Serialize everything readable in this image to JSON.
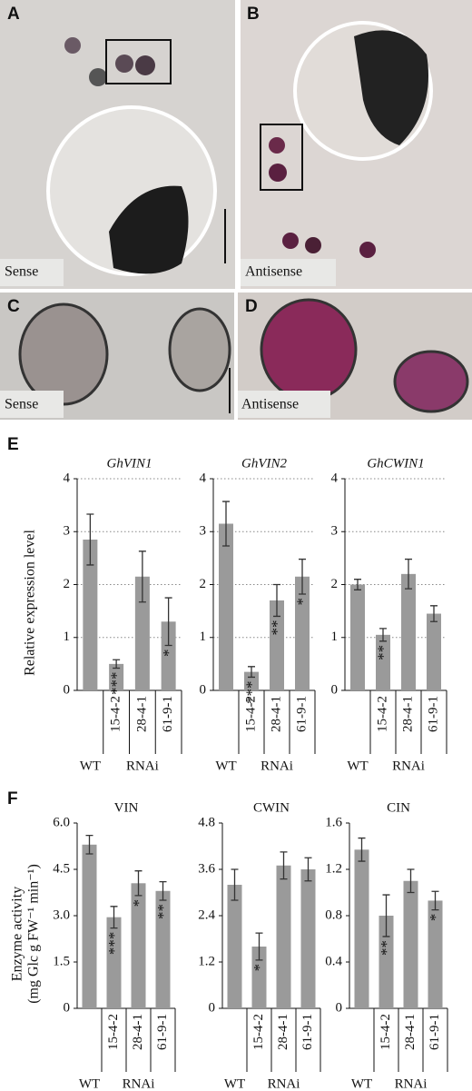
{
  "image_panels": [
    {
      "letter": "A",
      "caption": "Sense"
    },
    {
      "letter": "B",
      "caption": "Antisense"
    },
    {
      "letter": "C",
      "caption": "Sense"
    },
    {
      "letter": "D",
      "caption": "Antisense"
    }
  ],
  "panel_labels": [
    "E",
    "F"
  ],
  "chart_data": [
    {
      "type": "bar",
      "title": "GhVIN1",
      "title_italic": true,
      "y_label": "Relative expression level",
      "categories": [
        "WT",
        "15-4-2",
        "28-4-1",
        "61-9-1"
      ],
      "group_label": "RNAi",
      "values": [
        2.85,
        0.5,
        2.15,
        1.3
      ],
      "errors": [
        0.48,
        0.08,
        0.48,
        0.45
      ],
      "annotations": [
        null,
        "***",
        null,
        "*"
      ],
      "color": "#9a9a9a",
      "ylim": [
        0,
        4
      ],
      "yticks": [
        0,
        1,
        2,
        3,
        4
      ],
      "grid": true
    },
    {
      "type": "bar",
      "title": "GhVIN2",
      "title_italic": true,
      "categories": [
        "WT",
        "15-4-2",
        "28-4-1",
        "61-9-1"
      ],
      "group_label": "RNAi",
      "values": [
        3.15,
        0.35,
        1.7,
        2.15
      ],
      "errors": [
        0.42,
        0.1,
        0.3,
        0.33
      ],
      "annotations": [
        null,
        "***",
        "**",
        "*"
      ],
      "color": "#9a9a9a",
      "ylim": [
        0,
        4
      ],
      "yticks": [
        0,
        1,
        2,
        3,
        4
      ],
      "grid": true
    },
    {
      "type": "bar",
      "title": "GhCWIN1",
      "title_italic": true,
      "categories": [
        "WT",
        "15-4-2",
        "28-4-1",
        "61-9-1"
      ],
      "group_label": "RNAi",
      "values": [
        2.0,
        1.05,
        2.2,
        1.45
      ],
      "errors": [
        0.1,
        0.12,
        0.28,
        0.15
      ],
      "annotations": [
        null,
        "**",
        null,
        null
      ],
      "color": "#9a9a9a",
      "ylim": [
        0,
        4
      ],
      "yticks": [
        0,
        1,
        2,
        3,
        4
      ],
      "grid": true
    },
    {
      "type": "bar",
      "title": "VIN",
      "title_italic": false,
      "y_label": [
        "Enzyme activity",
        "(mg Glc g FW⁻¹ min⁻¹)"
      ],
      "categories": [
        "WT",
        "15-4-2",
        "28-4-1",
        "61-9-1"
      ],
      "group_label": "RNAi",
      "values": [
        5.3,
        2.95,
        4.05,
        3.8
      ],
      "errors": [
        0.3,
        0.35,
        0.4,
        0.3
      ],
      "annotations": [
        null,
        "***",
        "*",
        "**"
      ],
      "color": "#9a9a9a",
      "ylim": [
        0,
        6
      ],
      "yticks": [
        0,
        {
          "value": 1.5,
          "label": "1.5"
        },
        {
          "value": 3,
          "label": "3.0"
        },
        {
          "value": 4.5,
          "label": "4.5"
        },
        {
          "value": 6,
          "label": "6.0"
        }
      ],
      "grid": false
    },
    {
      "type": "bar",
      "title": "CWIN",
      "title_italic": false,
      "categories": [
        "WT",
        "15-4-2",
        "28-4-1",
        "61-9-1"
      ],
      "group_label": "RNAi",
      "values": [
        3.2,
        1.6,
        3.7,
        3.6
      ],
      "errors": [
        0.4,
        0.35,
        0.35,
        0.3
      ],
      "annotations": [
        null,
        "*",
        null,
        null
      ],
      "color": "#9a9a9a",
      "ylim": [
        0,
        4.8
      ],
      "yticks": [
        0,
        1.2,
        2.4,
        3.6,
        4.8
      ],
      "grid": false
    },
    {
      "type": "bar",
      "title": "CIN",
      "title_italic": false,
      "categories": [
        "WT",
        "15-4-2",
        "28-4-1",
        "61-9-1"
      ],
      "group_label": "RNAi",
      "values": [
        1.37,
        0.8,
        1.1,
        0.93
      ],
      "errors": [
        0.1,
        0.18,
        0.1,
        0.08
      ],
      "annotations": [
        null,
        "**",
        null,
        "*"
      ],
      "color": "#9a9a9a",
      "ylim": [
        0,
        1.6
      ],
      "yticks": [
        0,
        0.4,
        0.8,
        1.2,
        1.6
      ],
      "grid": false
    }
  ]
}
